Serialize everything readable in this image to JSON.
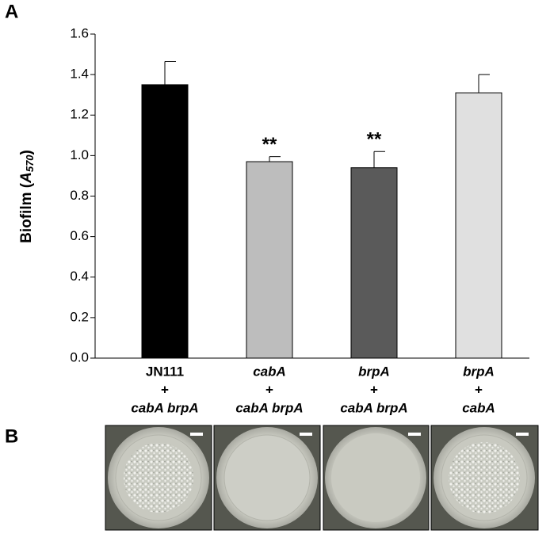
{
  "chart_data": {
    "type": "bar",
    "panel_labels": [
      "A",
      "B"
    ],
    "y_label_parts": [
      "Biofilm (",
      "A",
      "570",
      ")"
    ],
    "categories": [
      [
        "JN111",
        "+",
        "cabA brpA"
      ],
      [
        "cabA",
        "+",
        "cabA brpA"
      ],
      [
        "brpA",
        "+",
        "cabA brpA"
      ],
      [
        "brpA",
        "+",
        "cabA"
      ]
    ],
    "values": [
      1.35,
      0.97,
      0.94,
      1.31
    ],
    "errors": [
      0.115,
      0.025,
      0.08,
      0.09
    ],
    "colors": [
      "#000000",
      "#bdbdbd",
      "#5a5a5a",
      "#e0e0e0"
    ],
    "significance": [
      null,
      "**",
      "**",
      null
    ],
    "ylim": [
      0,
      1.6
    ],
    "yticks": [
      {
        "value": 0,
        "label": "0.0"
      },
      0.2,
      0.4,
      0.6,
      0.8,
      {
        "value": 1,
        "label": "1.0"
      },
      1.2,
      1.4,
      1.6
    ],
    "grid": false
  }
}
